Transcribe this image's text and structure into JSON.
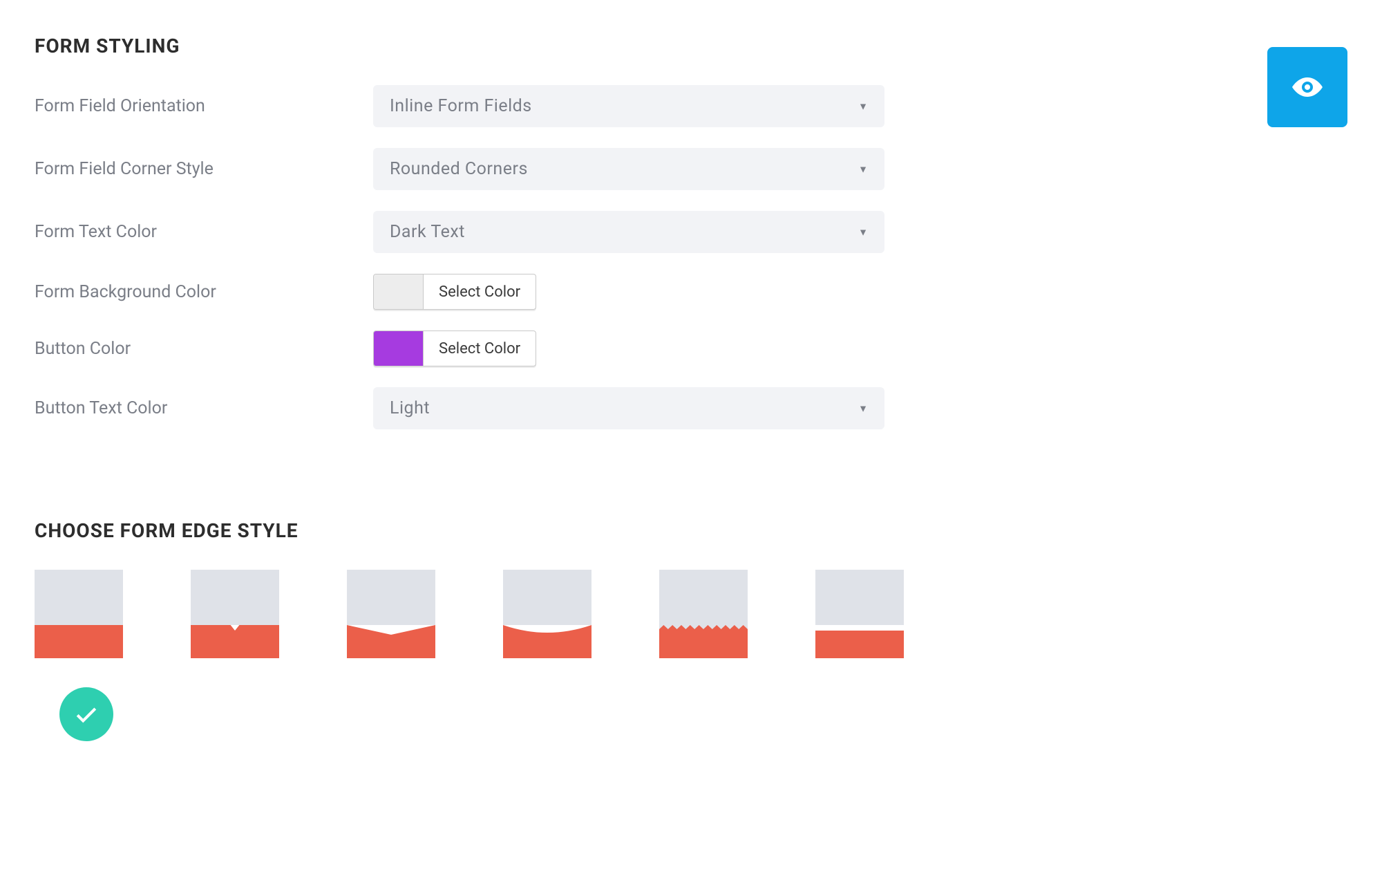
{
  "colors": {
    "accent_blue": "#0ea5e9",
    "accent_teal": "#2ecfb0",
    "edge_coral": "#eb5f4a",
    "edge_grey": "#dfe2e8",
    "select_bg": "#f2f3f6",
    "text_muted": "#7a7e87",
    "text_heading": "#2d2d2d",
    "swatch_bg_grey": "#ededed",
    "swatch_button_purple": "#a63be0"
  },
  "section1": {
    "title": "FORM STYLING",
    "fields": {
      "orientation": {
        "label": "Form Field Orientation",
        "value": "Inline Form Fields"
      },
      "corner_style": {
        "label": "Form Field Corner Style",
        "value": "Rounded Corners"
      },
      "text_color": {
        "label": "Form Text Color",
        "value": "Dark Text"
      },
      "bg_color": {
        "label": "Form Background Color",
        "button": "Select Color"
      },
      "button_color": {
        "label": "Button Color",
        "button": "Select Color"
      },
      "button_text_color": {
        "label": "Button Text Color",
        "value": "Light"
      }
    }
  },
  "section2": {
    "title": "CHOOSE FORM EDGE STYLE",
    "options": [
      {
        "id": "straight"
      },
      {
        "id": "notch"
      },
      {
        "id": "angle"
      },
      {
        "id": "curve"
      },
      {
        "id": "zigzag"
      },
      {
        "id": "gap"
      }
    ],
    "selected_index": 0
  }
}
